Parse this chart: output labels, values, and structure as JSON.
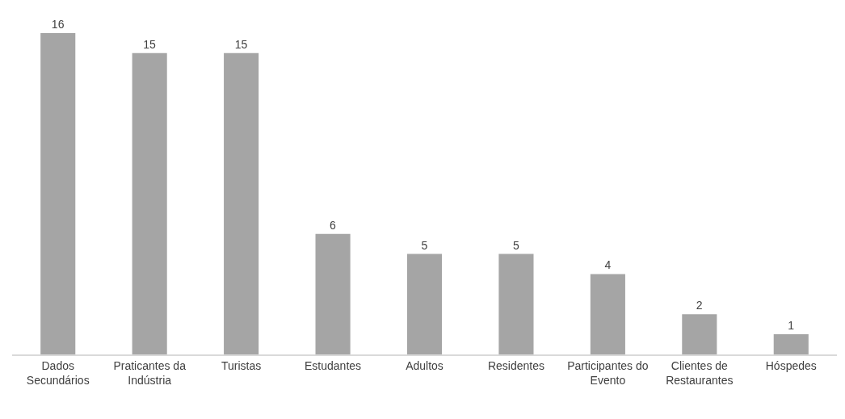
{
  "chart_data": {
    "type": "bar",
    "categories": [
      "Dados\nSecundários",
      "Praticantes da\nIndústria",
      "Turistas",
      "Estudantes",
      "Adultos",
      "Residentes",
      "Participantes do\nEvento",
      "Clientes de\nRestaurantes",
      "Hóspedes"
    ],
    "values": [
      16,
      15,
      15,
      6,
      5,
      5,
      4,
      2,
      1
    ],
    "color": "#a5a5a5",
    "data_labels": true
  }
}
